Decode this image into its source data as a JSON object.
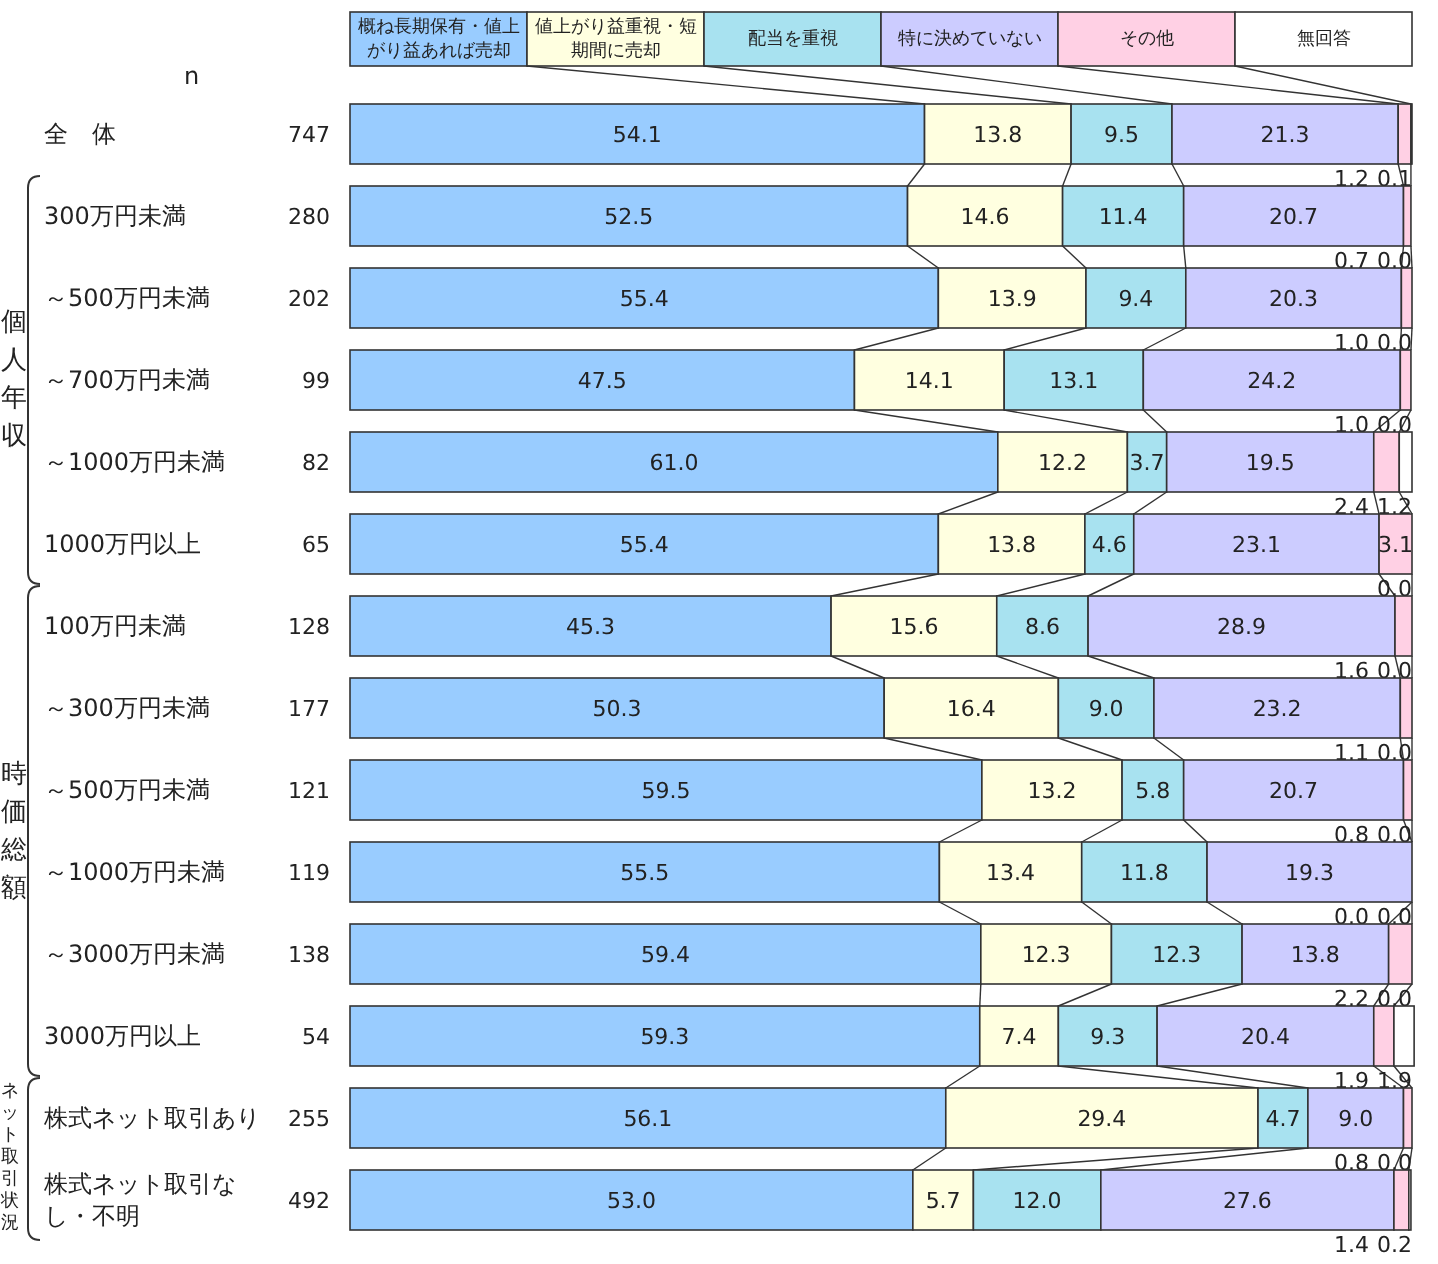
{
  "chart_data": {
    "type": "bar",
    "orientation": "horizontal",
    "stacked": true,
    "legend": "top",
    "xlim": [
      0,
      100
    ],
    "categories": [
      "全　体",
      "300万円未満",
      "～500万円未満",
      "～700万円未満",
      "～1000万円未満",
      "1000万円以上",
      "100万円未満",
      "～300万円未満",
      "～500万円未満",
      "～1000万円未満",
      "～3000万円未満",
      "3000万円以上",
      "株式ネット取引あり",
      "株式ネット取引なし・不明"
    ],
    "series": [
      {
        "name": "概ね長期保有・値上がり益あれば売却",
        "color": "#99ccff",
        "values": [
          54.1,
          52.5,
          55.4,
          47.5,
          61.0,
          55.4,
          45.3,
          50.3,
          59.5,
          55.5,
          59.4,
          59.3,
          56.1,
          53.0
        ],
        "value_labels": [
          "54.1",
          "52.5",
          "55.4",
          "47.5",
          "61.0",
          "55.4",
          "45.3",
          "50.3",
          "59.5",
          "55.5",
          "59.4",
          "59.3",
          "56.1",
          "53.0"
        ]
      },
      {
        "name": "値上がり益重視・短期間に売却",
        "color": "#ffffe0",
        "values": [
          13.8,
          14.6,
          13.9,
          14.1,
          12.2,
          13.8,
          15.6,
          16.4,
          13.2,
          13.4,
          12.3,
          7.4,
          29.4,
          5.7
        ],
        "value_labels": [
          "13.8",
          "14.6",
          "13.9",
          "14.1",
          "12.2",
          "13.8",
          "15.6",
          "16.4",
          "13.2",
          "13.4",
          "12.3",
          "7.4",
          "29.4",
          "5.7"
        ]
      },
      {
        "name": "配当を重視",
        "color": "#a8e2f0",
        "values": [
          9.5,
          11.4,
          9.4,
          13.1,
          3.7,
          4.6,
          8.6,
          9.0,
          5.8,
          11.8,
          12.3,
          9.3,
          4.7,
          12.0
        ],
        "value_labels": [
          "9.5",
          "11.4",
          "9.4",
          "13.1",
          "3.7",
          "4.6",
          "8.6",
          "9.0",
          "5.8",
          "11.8",
          "12.3",
          "9.3",
          "4.7",
          "12.0"
        ]
      },
      {
        "name": "特に決めていない",
        "color": "#ccccff",
        "values": [
          21.3,
          20.7,
          20.3,
          24.2,
          19.5,
          23.1,
          28.9,
          23.2,
          20.7,
          19.3,
          13.8,
          20.4,
          9.0,
          27.6
        ],
        "value_labels": [
          "21.3",
          "20.7",
          "20.3",
          "24.2",
          "19.5",
          "23.1",
          "28.9",
          "23.2",
          "20.7",
          "19.3",
          "13.8",
          "20.4",
          "9.0",
          "27.6"
        ]
      },
      {
        "name": "その他",
        "color": "#ffd0e4",
        "values": [
          1.2,
          0.7,
          1.0,
          1.0,
          2.4,
          3.1,
          1.6,
          1.1,
          0.8,
          0.0,
          2.2,
          1.9,
          0.8,
          1.4
        ],
        "value_labels": [
          "1.2",
          "0.7",
          "1.0",
          "1.0",
          "2.4",
          "3.1",
          "1.6",
          "1.1",
          "0.8",
          "0.0",
          "2.2",
          "1.9",
          "0.8",
          "1.4"
        ]
      },
      {
        "name": "無回答",
        "color": "#ffffff",
        "values": [
          0.1,
          0.0,
          0.0,
          0.0,
          1.2,
          0.0,
          0.0,
          0.0,
          0.0,
          0.0,
          0.0,
          1.9,
          0.0,
          0.2
        ],
        "value_labels": [
          "0.1",
          "0.0",
          "0.0",
          "0.0",
          "1.2",
          "0.0",
          "0.0",
          "0.0",
          "0.0",
          "0.0",
          "0.0",
          "1.9",
          "0.0",
          "0.2"
        ]
      }
    ],
    "annotations": [
      "n",
      "747",
      "280",
      "202",
      "99",
      "82",
      "65",
      "128",
      "177",
      "121",
      "119",
      "138",
      "54",
      "255",
      "492",
      "個人年収",
      "時価総額",
      "ネット取引状況"
    ]
  }
}
